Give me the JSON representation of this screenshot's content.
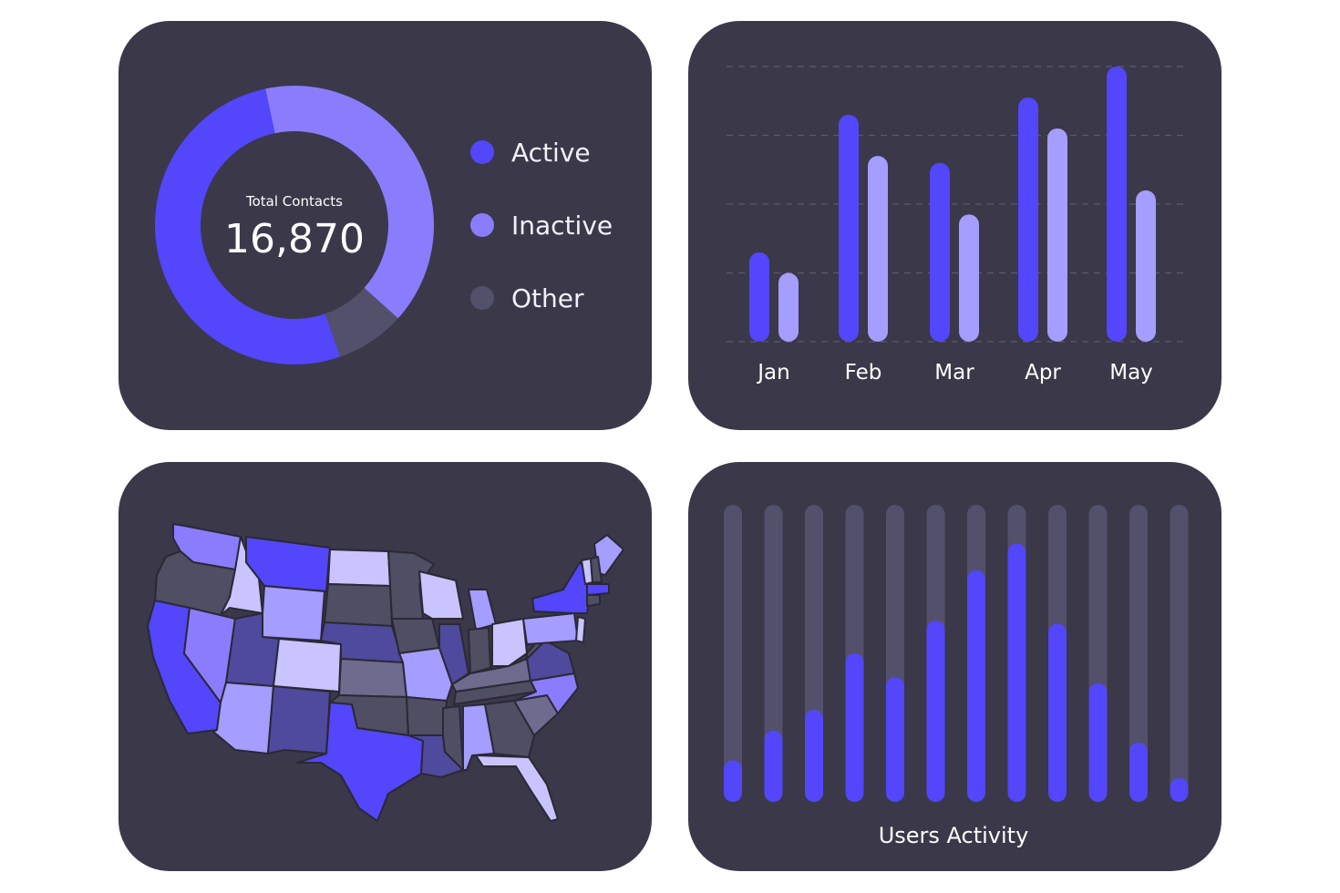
{
  "donut": {
    "total_label": "Total Contacts",
    "total_value": "16,870",
    "legend": [
      {
        "label": "Active",
        "color": "#5346fb"
      },
      {
        "label": "Inactive",
        "color": "#8a7cfd"
      },
      {
        "label": "Other",
        "color": "#52506a"
      }
    ]
  },
  "activity": {
    "title": "Users Activity"
  },
  "map": {
    "colors": [
      "#5346fb",
      "#8a7cfd",
      "#a59dff",
      "#c9c4ff",
      "#4f4a9e",
      "#6e6b8e",
      "#504e63"
    ]
  },
  "chart_data": [
    {
      "type": "pie",
      "title": "Total Contacts",
      "total": 16870,
      "categories": [
        "Active",
        "Inactive",
        "Other"
      ],
      "values": [
        52,
        40,
        8
      ],
      "colors": [
        "#5346fb",
        "#8a7cfd",
        "#52506a"
      ]
    },
    {
      "type": "bar",
      "categories": [
        "Jan",
        "Feb",
        "Mar",
        "Apr",
        "May"
      ],
      "series": [
        {
          "values": [
            26,
            66,
            52,
            71,
            80
          ],
          "color": "#5346fb"
        },
        {
          "values": [
            20,
            54,
            37,
            62,
            44
          ],
          "color": "#a59dff"
        }
      ],
      "ylim": [
        0,
        80
      ],
      "grid": true
    },
    {
      "type": "bar",
      "title": "Users Activity",
      "values": [
        14,
        24,
        31,
        50,
        42,
        61,
        78,
        87,
        60,
        40,
        20,
        8
      ],
      "ylim": [
        0,
        100
      ],
      "track_color": "#52506a",
      "bar_color": "#5346fb"
    }
  ]
}
